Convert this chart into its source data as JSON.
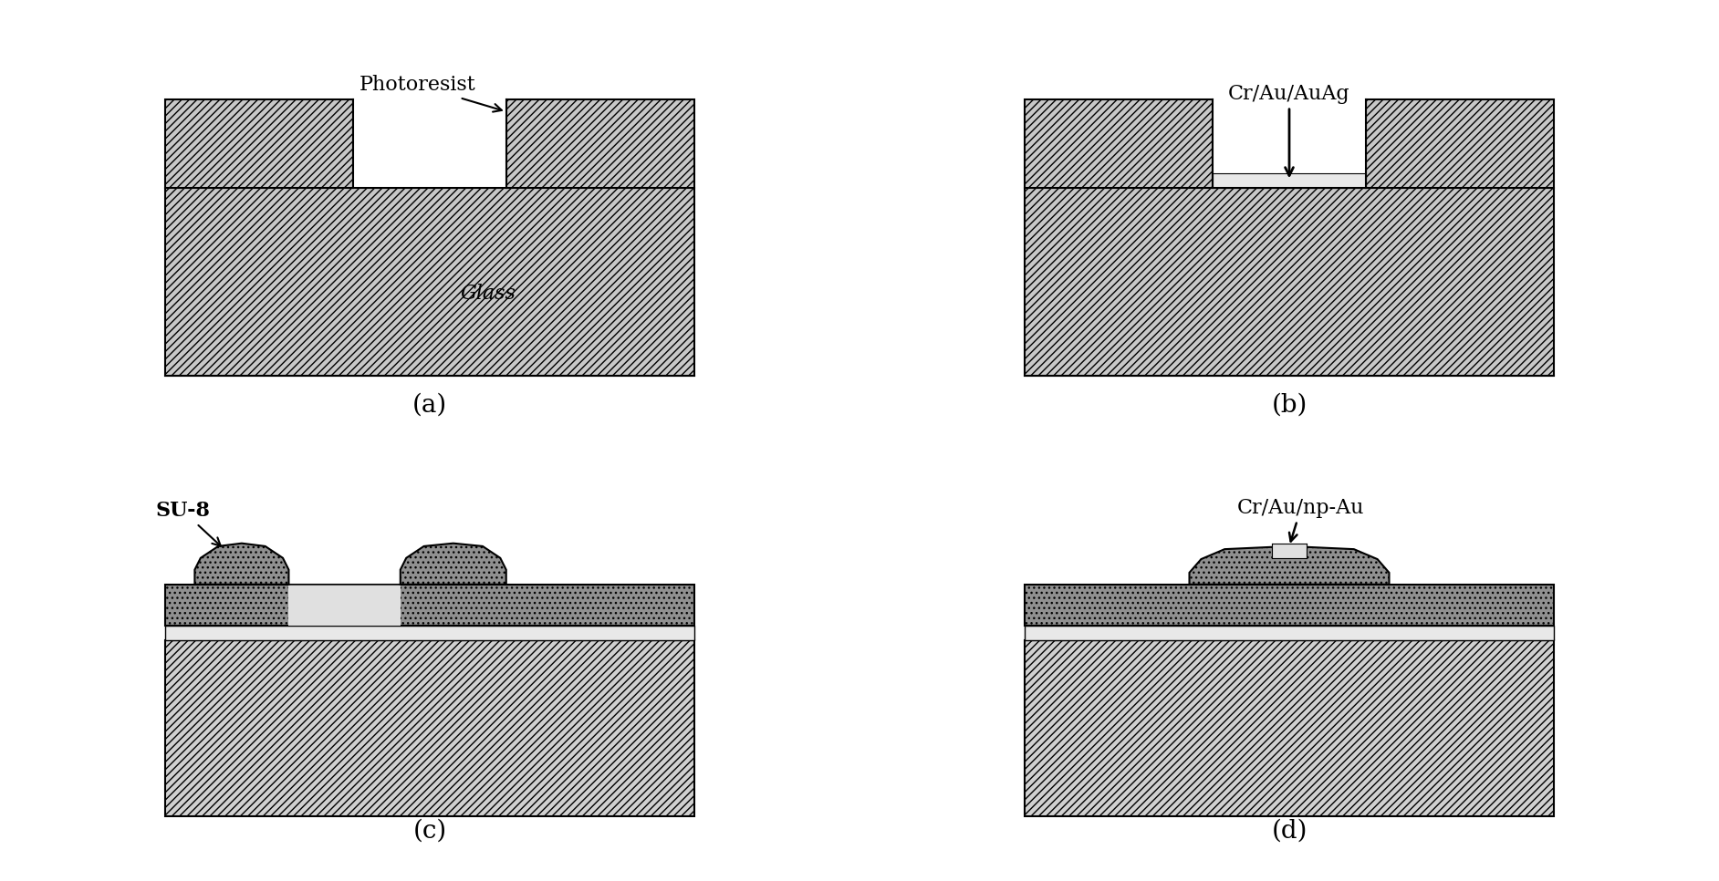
{
  "fig_width": 18.84,
  "fig_height": 9.66,
  "bg_color": "#ffffff",
  "labels": {
    "a": "(a)",
    "b": "(b)",
    "c": "(c)",
    "d": "(d)"
  },
  "annot": {
    "photoresist": "Photoresist",
    "glass": "Glass",
    "b": "Cr/Au/AuAg",
    "c": "SU-8",
    "d": "Cr/Au/np-Au"
  },
  "font_label": 20,
  "font_annot": 16,
  "color_glass_face": "#c8c8c8",
  "color_photoresist_face": "#c8c8c8",
  "color_white": "#ffffff",
  "color_dark_su8": "#888888",
  "color_metal_strip": "#e0e0e0",
  "color_black": "#000000"
}
